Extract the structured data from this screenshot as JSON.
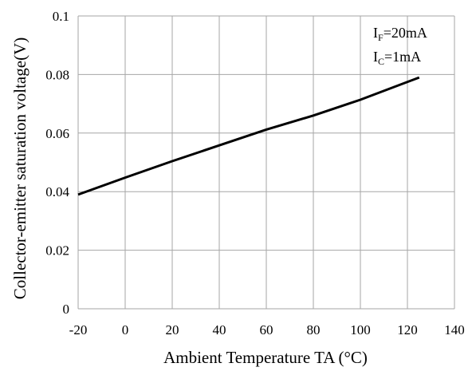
{
  "chart_data": {
    "type": "line",
    "xlabel": "Ambient Temperature TA (°C)",
    "ylabel": "Collector-emitter saturation voltage(V)",
    "xlim": [
      -20,
      140
    ],
    "ylim": [
      0,
      0.1
    ],
    "x_ticks": [
      "-20",
      "0",
      "20",
      "40",
      "60",
      "80",
      "100",
      "120",
      "140"
    ],
    "y_ticks": [
      "0",
      "0.02",
      "0.04",
      "0.06",
      "0.08",
      "0.1"
    ],
    "x_tick_values": [
      -20,
      0,
      20,
      40,
      60,
      80,
      100,
      120,
      140
    ],
    "y_tick_values": [
      0,
      0.02,
      0.04,
      0.06,
      0.08,
      0.1
    ],
    "grid": true,
    "series": [
      {
        "x": [
          -20,
          0,
          20,
          40,
          60,
          80,
          100,
          125
        ],
        "values": [
          0.039,
          0.0448,
          0.0504,
          0.0558,
          0.0612,
          0.066,
          0.0714,
          0.079
        ]
      }
    ],
    "annotations": [
      {
        "main": "I",
        "sub": "F",
        "rest": "=20mA"
      },
      {
        "main": "I",
        "sub": "C",
        "rest": "=1mA"
      }
    ],
    "colors": {
      "line": "#000000",
      "grid": "#a6a6a6",
      "axis": "#a6a6a6"
    }
  }
}
